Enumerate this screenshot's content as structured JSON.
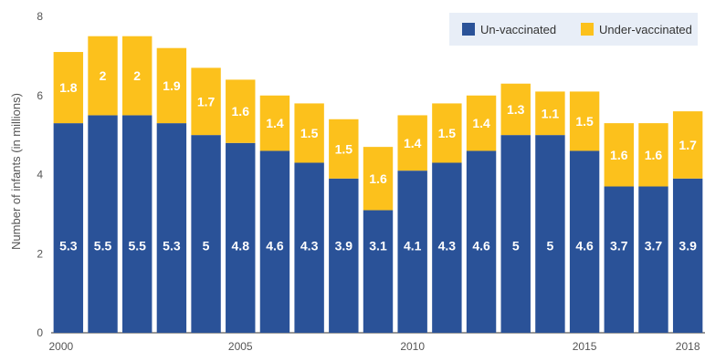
{
  "chart_data": {
    "type": "bar",
    "stacked": true,
    "categories": [
      "2000",
      "2001",
      "2002",
      "2003",
      "2004",
      "2005",
      "2006",
      "2007",
      "2008",
      "2009",
      "2010",
      "2011",
      "2012",
      "2013",
      "2014",
      "2015",
      "2016",
      "2017",
      "2018"
    ],
    "x_tick_labels": [
      "2000",
      "2005",
      "2010",
      "2015",
      "2018"
    ],
    "series": [
      {
        "name": "Un-vaccinated",
        "color": "#2a5298",
        "values": [
          5.3,
          5.5,
          5.5,
          5.3,
          5,
          4.8,
          4.6,
          4.3,
          3.9,
          3.1,
          4.1,
          4.3,
          4.6,
          5,
          5,
          4.6,
          3.7,
          3.7,
          3.9
        ]
      },
      {
        "name": "Under-vaccinated",
        "color": "#fcc11c",
        "values": [
          1.8,
          2,
          2,
          1.9,
          1.7,
          1.6,
          1.4,
          1.5,
          1.5,
          1.6,
          1.4,
          1.5,
          1.4,
          1.3,
          1.1,
          1.5,
          1.6,
          1.6,
          1.7
        ]
      }
    ],
    "ylabel": "Number of infants (in millions)",
    "ylim": [
      0,
      8
    ],
    "yticks": [
      "0",
      "2",
      "4",
      "6",
      "8"
    ],
    "legend_position": "top-right",
    "legend_background": "#e8eef7",
    "grid": false
  }
}
